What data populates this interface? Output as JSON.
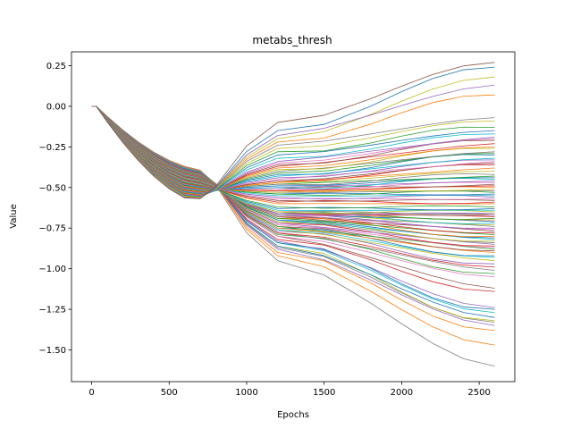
{
  "chart_data": {
    "type": "line",
    "title": "metabs_thresh",
    "xlabel": "Epochs",
    "ylabel": "Value",
    "xlim": [
      -130,
      2730
    ],
    "ylim": [
      -1.695,
      0.335
    ],
    "x_ticks": [
      0,
      500,
      1000,
      1500,
      2000,
      2500
    ],
    "x_tick_labels": [
      "0",
      "500",
      "1000",
      "1500",
      "2000",
      "2500"
    ],
    "y_ticks": [
      0.25,
      0.0,
      -0.25,
      -0.5,
      -0.75,
      -1.0,
      -1.25,
      -1.5
    ],
    "y_tick_labels": [
      "0.25",
      "0.00",
      "−0.25",
      "−0.50",
      "−0.75",
      "−1.00",
      "−1.25",
      "−1.50"
    ],
    "grid": false,
    "legend": "none",
    "line_width": 0.8,
    "colors": [
      "#1f77b4",
      "#ff7f0e",
      "#2ca02c",
      "#d62728",
      "#9467bd",
      "#8c564b",
      "#e377c2",
      "#7f7f7f",
      "#bcbd22",
      "#17becf"
    ],
    "notes": "Approximately 100 threshold trajectories over training. All series start at 0 at epoch 0, decline to roughly -0.35 to -0.6 by epoch ~650, then diverge. Final values at epoch 2600 listed per series; middle values are the approximate value at epoch 1200.",
    "x": [
      0,
      30,
      100,
      200,
      300,
      400,
      500,
      600,
      700,
      800,
      1000,
      1200,
      1500,
      1800,
      2000,
      2200,
      2400,
      2600
    ],
    "series": [
      {
        "color": "#7f7f7f",
        "mid": -0.95,
        "final": -1.6
      },
      {
        "color": "#ff7f0e",
        "mid": -0.92,
        "final": -1.47
      },
      {
        "color": "#ff7f0e",
        "mid": -0.9,
        "final": -1.38
      },
      {
        "color": "#9467bd",
        "mid": -0.88,
        "final": -1.35
      },
      {
        "color": "#7f7f7f",
        "mid": -0.87,
        "final": -1.33
      },
      {
        "color": "#bcbd22",
        "mid": -0.86,
        "final": -1.32
      },
      {
        "color": "#1f77b4",
        "mid": -0.86,
        "final": -1.3
      },
      {
        "color": "#17becf",
        "mid": -0.84,
        "final": -1.27
      },
      {
        "color": "#1f77b4",
        "mid": -0.84,
        "final": -1.25
      },
      {
        "color": "#9467bd",
        "mid": -0.83,
        "final": -1.24
      },
      {
        "color": "#d62728",
        "mid": -0.82,
        "final": -1.14
      },
      {
        "color": "#8c564b",
        "mid": -0.8,
        "final": -1.12
      },
      {
        "color": "#e377c2",
        "mid": -0.8,
        "final": -1.05
      },
      {
        "color": "#2ca02c",
        "mid": -0.79,
        "final": -1.03
      },
      {
        "color": "#7f7f7f",
        "mid": -0.78,
        "final": -1.01
      },
      {
        "color": "#d62728",
        "mid": -0.78,
        "final": -0.99
      },
      {
        "color": "#9467bd",
        "mid": -0.77,
        "final": -0.97
      },
      {
        "color": "#bcbd22",
        "mid": -0.76,
        "final": -0.95
      },
      {
        "color": "#17becf",
        "mid": -0.76,
        "final": -0.93
      },
      {
        "color": "#1f77b4",
        "mid": -0.75,
        "final": -0.92
      },
      {
        "color": "#ff7f0e",
        "mid": -0.75,
        "final": -0.9
      },
      {
        "color": "#8c564b",
        "mid": -0.74,
        "final": -0.89
      },
      {
        "color": "#2ca02c",
        "mid": -0.74,
        "final": -0.88
      },
      {
        "color": "#e377c2",
        "mid": -0.73,
        "final": -0.87
      },
      {
        "color": "#d62728",
        "mid": -0.72,
        "final": -0.86
      },
      {
        "color": "#9467bd",
        "mid": -0.72,
        "final": -0.85
      },
      {
        "color": "#7f7f7f",
        "mid": -0.71,
        "final": -0.84
      },
      {
        "color": "#bcbd22",
        "mid": -0.71,
        "final": -0.83
      },
      {
        "color": "#17becf",
        "mid": -0.7,
        "final": -0.82
      },
      {
        "color": "#1f77b4",
        "mid": -0.7,
        "final": -0.81
      },
      {
        "color": "#ff7f0e",
        "mid": -0.69,
        "final": -0.8
      },
      {
        "color": "#2ca02c",
        "mid": -0.69,
        "final": -0.79
      },
      {
        "color": "#d62728",
        "mid": -0.68,
        "final": -0.78
      },
      {
        "color": "#8c564b",
        "mid": -0.68,
        "final": -0.77
      },
      {
        "color": "#e377c2",
        "mid": -0.67,
        "final": -0.76
      },
      {
        "color": "#9467bd",
        "mid": -0.67,
        "final": -0.75
      },
      {
        "color": "#7f7f7f",
        "mid": -0.67,
        "final": -0.74
      },
      {
        "color": "#bcbd22",
        "mid": -0.66,
        "final": -0.73
      },
      {
        "color": "#17becf",
        "mid": -0.66,
        "final": -0.72
      },
      {
        "color": "#1f77b4",
        "mid": -0.66,
        "final": -0.71
      },
      {
        "color": "#ff7f0e",
        "mid": -0.66,
        "final": -0.7
      },
      {
        "color": "#2ca02c",
        "mid": -0.66,
        "final": -0.69
      },
      {
        "color": "#d62728",
        "mid": -0.66,
        "final": -0.68
      },
      {
        "color": "#8c564b",
        "mid": -0.66,
        "final": -0.67
      },
      {
        "color": "#e377c2",
        "mid": -0.66,
        "final": -0.67
      },
      {
        "color": "#9467bd",
        "mid": -0.66,
        "final": -0.66
      },
      {
        "color": "#7f7f7f",
        "mid": -0.65,
        "final": -0.66
      },
      {
        "color": "#bcbd22",
        "mid": -0.65,
        "final": -0.65
      },
      {
        "color": "#17becf",
        "mid": -0.64,
        "final": -0.64
      },
      {
        "color": "#1f77b4",
        "mid": -0.63,
        "final": -0.63
      },
      {
        "color": "#2ca02c",
        "mid": -0.62,
        "final": -0.62
      },
      {
        "color": "#ff7f0e",
        "mid": -0.6,
        "final": -0.6
      },
      {
        "color": "#d62728",
        "mid": -0.59,
        "final": -0.59
      },
      {
        "color": "#8c564b",
        "mid": -0.58,
        "final": -0.58
      },
      {
        "color": "#e377c2",
        "mid": -0.57,
        "final": -0.57
      },
      {
        "color": "#9467bd",
        "mid": -0.56,
        "final": -0.56
      },
      {
        "color": "#17becf",
        "mid": -0.55,
        "final": -0.55
      },
      {
        "color": "#1f77b4",
        "mid": -0.54,
        "final": -0.54
      },
      {
        "color": "#2ca02c",
        "mid": -0.54,
        "final": -0.53
      },
      {
        "color": "#7f7f7f",
        "mid": -0.53,
        "final": -0.52
      },
      {
        "color": "#bcbd22",
        "mid": -0.53,
        "final": -0.51
      },
      {
        "color": "#ff7f0e",
        "mid": -0.52,
        "final": -0.5
      },
      {
        "color": "#d62728",
        "mid": -0.52,
        "final": -0.49
      },
      {
        "color": "#8c564b",
        "mid": -0.51,
        "final": -0.48
      },
      {
        "color": "#e377c2",
        "mid": -0.51,
        "final": -0.47
      },
      {
        "color": "#9467bd",
        "mid": -0.5,
        "final": -0.46
      },
      {
        "color": "#17becf",
        "mid": -0.5,
        "final": -0.45
      },
      {
        "color": "#1f77b4",
        "mid": -0.49,
        "final": -0.44
      },
      {
        "color": "#2ca02c",
        "mid": -0.48,
        "final": -0.43
      },
      {
        "color": "#7f7f7f",
        "mid": -0.48,
        "final": -0.42
      },
      {
        "color": "#bcbd22",
        "mid": -0.47,
        "final": -0.4
      },
      {
        "color": "#ff7f0e",
        "mid": -0.47,
        "final": -0.38
      },
      {
        "color": "#d62728",
        "mid": -0.46,
        "final": -0.36
      },
      {
        "color": "#8c564b",
        "mid": -0.46,
        "final": -0.35
      },
      {
        "color": "#e377c2",
        "mid": -0.45,
        "final": -0.34
      },
      {
        "color": "#9467bd",
        "mid": -0.44,
        "final": -0.33
      },
      {
        "color": "#17becf",
        "mid": -0.43,
        "final": -0.32
      },
      {
        "color": "#1f77b4",
        "mid": -0.42,
        "final": -0.3
      },
      {
        "color": "#2ca02c",
        "mid": -0.41,
        "final": -0.29
      },
      {
        "color": "#7f7f7f",
        "mid": -0.4,
        "final": -0.28
      },
      {
        "color": "#bcbd22",
        "mid": -0.39,
        "final": -0.26
      },
      {
        "color": "#ff7f0e",
        "mid": -0.38,
        "final": -0.25
      },
      {
        "color": "#d62728",
        "mid": -0.37,
        "final": -0.23
      },
      {
        "color": "#8c564b",
        "mid": -0.36,
        "final": -0.21
      },
      {
        "color": "#e377c2",
        "mid": -0.35,
        "final": -0.2
      },
      {
        "color": "#9467bd",
        "mid": -0.34,
        "final": -0.19
      },
      {
        "color": "#17becf",
        "mid": -0.32,
        "final": -0.17
      },
      {
        "color": "#1f77b4",
        "mid": -0.3,
        "final": -0.15
      },
      {
        "color": "#2ca02c",
        "mid": -0.28,
        "final": -0.13
      },
      {
        "color": "#bcbd22",
        "mid": -0.26,
        "final": -0.09
      },
      {
        "color": "#7f7f7f",
        "mid": -0.24,
        "final": -0.07
      },
      {
        "color": "#ff7f0e",
        "mid": -0.22,
        "final": 0.07
      },
      {
        "color": "#bcbd22",
        "mid": -0.2,
        "final": 0.18
      },
      {
        "color": "#9467bd",
        "mid": -0.18,
        "final": 0.13
      },
      {
        "color": "#1f77b4",
        "mid": -0.15,
        "final": 0.24
      },
      {
        "color": "#8c564b",
        "mid": -0.1,
        "final": 0.27
      }
    ]
  }
}
